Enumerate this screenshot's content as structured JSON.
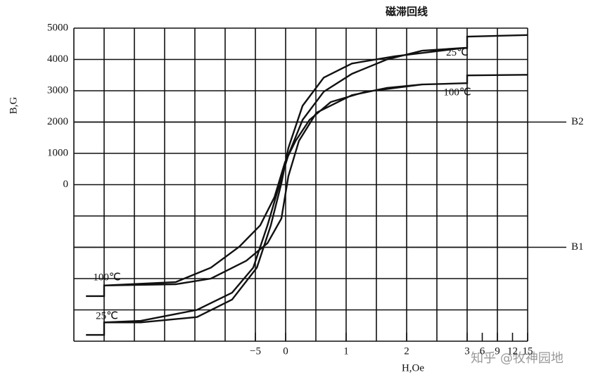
{
  "chart_data": {
    "type": "line",
    "title": "磁滞回线",
    "ylabel": "B,G",
    "xlabel": "H,Oe",
    "watermark": "知乎 @牧神园地",
    "xlim": [
      -7,
      8
    ],
    "ylim": [
      -5000,
      5000
    ],
    "xticks": [
      {
        "value": -1,
        "label": "−5"
      },
      {
        "value": 0,
        "label": "0"
      },
      {
        "value": 2,
        "label": "1"
      },
      {
        "value": 4,
        "label": "2"
      },
      {
        "value": 6,
        "label": "3"
      },
      {
        "value": 6.5,
        "label": "6"
      },
      {
        "value": 7,
        "label": "9"
      },
      {
        "value": 7.5,
        "label": "12"
      },
      {
        "value": 8,
        "label": "15"
      }
    ],
    "yticks": [
      0,
      1000,
      2000,
      3000,
      4000,
      5000
    ],
    "xgrid": [
      -7,
      -6,
      -5,
      -4,
      -3,
      -2,
      -1,
      0,
      1,
      2,
      3,
      4,
      5,
      6,
      7,
      8
    ],
    "ygrid": [
      -5000,
      -4000,
      -3000,
      -2000,
      -1000,
      0,
      1000,
      2000,
      3000,
      4000,
      5000
    ],
    "hlines": [
      {
        "label": "B2",
        "value": 2000
      },
      {
        "label": "B1",
        "value": -2000
      }
    ],
    "series": [
      {
        "name": "25℃",
        "color": "#111111",
        "x": [
          -6.6,
          -6.0,
          -6.0,
          -4.79,
          -2.93,
          -1.77,
          -1.07,
          -0.6,
          -0.26,
          0.09,
          0.56,
          1.26,
          2.19,
          3.35,
          4.51,
          5.91,
          6.0,
          6.0,
          8.0,
          null,
          5.91,
          3.6,
          2.19,
          1.26,
          0.56,
          0.09,
          -0.14,
          -0.49,
          -0.95,
          -1.77,
          -2.93,
          -4.79,
          -6.0
        ],
        "values": [
          -4800,
          -4800,
          -4400,
          -4350,
          -4000,
          -3450,
          -2650,
          -1300,
          -180,
          950,
          2070,
          2970,
          3540,
          4000,
          4280,
          4370,
          4370,
          4730,
          4780,
          null,
          4370,
          4100,
          3870,
          3420,
          2520,
          1170,
          45,
          -1300,
          -2650,
          -3670,
          -4230,
          -4400,
          -4400
        ]
      },
      {
        "name": "100℃",
        "color": "#111111",
        "x": [
          -6.6,
          -6.0,
          -6.0,
          -3.63,
          -2.47,
          -1.3,
          -0.6,
          -0.14,
          0.09,
          0.44,
          1.02,
          2.19,
          3.35,
          4.51,
          5.91,
          6.0,
          6.0,
          8.0,
          null,
          4.51,
          2.65,
          1.49,
          0.79,
          0.33,
          -0.02,
          -0.37,
          -0.84,
          -1.53,
          -2.47,
          -3.63,
          -6.0
        ],
        "values": [
          -3560,
          -3560,
          -3220,
          -3180,
          -3000,
          -2430,
          -1870,
          -1080,
          270,
          1400,
          2300,
          2860,
          3090,
          3200,
          3240,
          3240,
          3490,
          3510,
          null,
          3200,
          2970,
          2640,
          2070,
          1400,
          720,
          -400,
          -1300,
          -1980,
          -2650,
          -3110,
          -3220
        ]
      }
    ]
  }
}
